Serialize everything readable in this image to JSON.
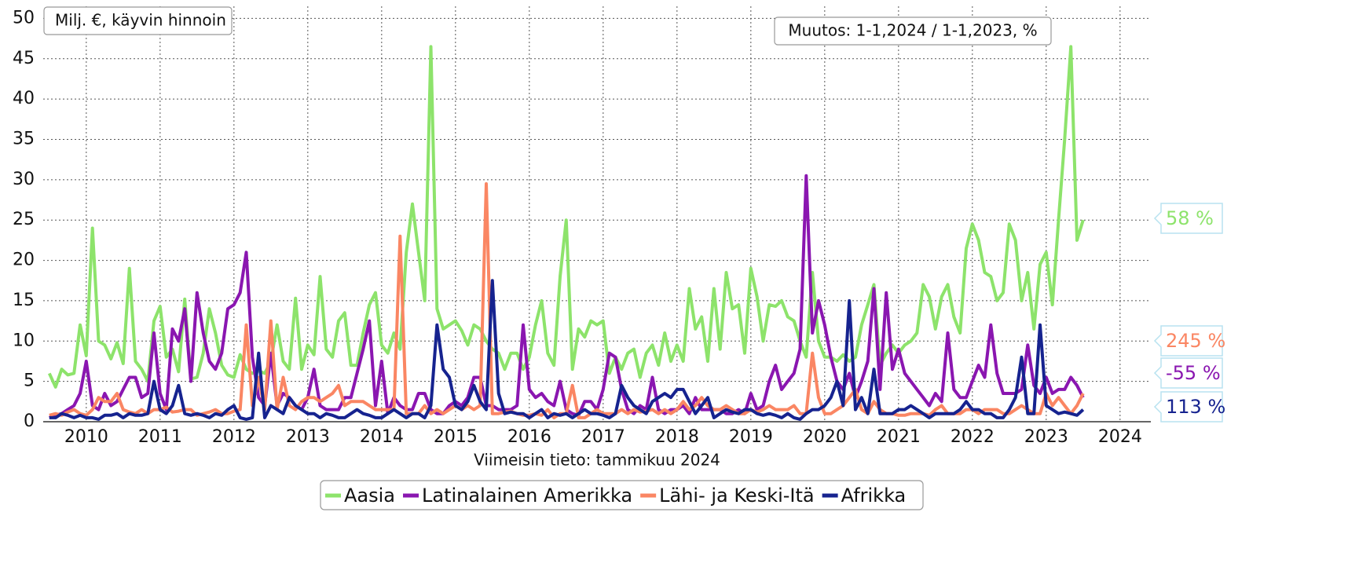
{
  "chart_data": {
    "type": "line",
    "annotations": {
      "units": "Milj. €, käyvin hinnoin",
      "change": "Muutos: 1-1,2024 / 1-1,2023, %",
      "footer": "Viimeisin tieto: tammikuu 2024"
    },
    "x": [
      "2010-01",
      "2010-02",
      "2010-03",
      "2010-04",
      "2010-05",
      "2010-06",
      "2010-07",
      "2010-08",
      "2010-09",
      "2010-10",
      "2010-11",
      "2010-12",
      "2011-01",
      "2011-02",
      "2011-03",
      "2011-04",
      "2011-05",
      "2011-06",
      "2011-07",
      "2011-08",
      "2011-09",
      "2011-10",
      "2011-11",
      "2011-12",
      "2012-01",
      "2012-02",
      "2012-03",
      "2012-04",
      "2012-05",
      "2012-06",
      "2012-07",
      "2012-08",
      "2012-09",
      "2012-10",
      "2012-11",
      "2012-12",
      "2013-01",
      "2013-02",
      "2013-03",
      "2013-04",
      "2013-05",
      "2013-06",
      "2013-07",
      "2013-08",
      "2013-09",
      "2013-10",
      "2013-11",
      "2013-12",
      "2014-01",
      "2014-02",
      "2014-03",
      "2014-04",
      "2014-05",
      "2014-06",
      "2014-07",
      "2014-08",
      "2014-09",
      "2014-10",
      "2014-11",
      "2014-12",
      "2015-01",
      "2015-02",
      "2015-03",
      "2015-04",
      "2015-05",
      "2015-06",
      "2015-07",
      "2015-08",
      "2015-09",
      "2015-10",
      "2015-11",
      "2015-12",
      "2016-01",
      "2016-02",
      "2016-03",
      "2016-04",
      "2016-05",
      "2016-06",
      "2016-07",
      "2016-08",
      "2016-09",
      "2016-10",
      "2016-11",
      "2016-12",
      "2017-01",
      "2017-02",
      "2017-03",
      "2017-04",
      "2017-05",
      "2017-06",
      "2017-07",
      "2017-08",
      "2017-09",
      "2017-10",
      "2017-11",
      "2017-12",
      "2018-01",
      "2018-02",
      "2018-03",
      "2018-04",
      "2018-05",
      "2018-06",
      "2018-07",
      "2018-08",
      "2018-09",
      "2018-10",
      "2018-11",
      "2018-12",
      "2019-01",
      "2019-02",
      "2019-03",
      "2019-04",
      "2019-05",
      "2019-06",
      "2019-07",
      "2019-08",
      "2019-09",
      "2019-10",
      "2019-11",
      "2019-12",
      "2020-01",
      "2020-02",
      "2020-03",
      "2020-04",
      "2020-05",
      "2020-06",
      "2020-07",
      "2020-08",
      "2020-09",
      "2020-10",
      "2020-11",
      "2020-12",
      "2021-01",
      "2021-02",
      "2021-03",
      "2021-04",
      "2021-05",
      "2021-06",
      "2021-07",
      "2021-08",
      "2021-09",
      "2021-10",
      "2021-11",
      "2021-12",
      "2022-01",
      "2022-02",
      "2022-03",
      "2022-04",
      "2022-05",
      "2022-06",
      "2022-07",
      "2022-08",
      "2022-09",
      "2022-10",
      "2022-11",
      "2022-12",
      "2023-01",
      "2023-02",
      "2023-03",
      "2023-04",
      "2023-05",
      "2023-06",
      "2023-07",
      "2023-08",
      "2023-09",
      "2023-10",
      "2023-11",
      "2023-12",
      "2024-01"
    ],
    "series": [
      {
        "name": "Aasia",
        "color": "#8de36b",
        "change_label": "58 %",
        "values": [
          6,
          4.3,
          6.5,
          5.8,
          6,
          12,
          8.2,
          24,
          10,
          9.5,
          7.8,
          9.8,
          7.2,
          19,
          7.5,
          6.5,
          5,
          12.5,
          14.3,
          8,
          9,
          6.2,
          15.2,
          5.3,
          5.5,
          8.5,
          14,
          11,
          7,
          5.8,
          5.5,
          8.3,
          6.5,
          6,
          6.3,
          6,
          7.5,
          12,
          7.5,
          6.5,
          15.3,
          6.5,
          9.5,
          8.3,
          18,
          9,
          8,
          12.5,
          13.5,
          7,
          7,
          11,
          14.5,
          16,
          9.5,
          8.5,
          11,
          9,
          21,
          27,
          21,
          15,
          46.5,
          14,
          11.5,
          12,
          12.5,
          11.3,
          9.5,
          12,
          11.5,
          10,
          9,
          8.5,
          6.5,
          8.5,
          8.5,
          6.5,
          8,
          12,
          15,
          8.5,
          7,
          18,
          25,
          6.5,
          11.5,
          10.5,
          12.5,
          12,
          12.5,
          6,
          8,
          6.5,
          8.5,
          9,
          5.5,
          8.5,
          9.5,
          7,
          11,
          7.5,
          9.5,
          7.5,
          16.5,
          11.5,
          13,
          7.5,
          16.5,
          9,
          18.5,
          14,
          14.5,
          8.5,
          19,
          15.5,
          10,
          14.5,
          14.3,
          15,
          13,
          12.5,
          10,
          8,
          18.5,
          10,
          8,
          8,
          7.5,
          8.3,
          7.5,
          8,
          12,
          14.5,
          17,
          7,
          8.5,
          9.5,
          8.5,
          9.5,
          10,
          11,
          17,
          15.5,
          11.5,
          15.5,
          17,
          13,
          11,
          21.5,
          24.5,
          22.5,
          18.5,
          18,
          15,
          16,
          24.5,
          22.5,
          15,
          18.5,
          11.5,
          19.5,
          21,
          14.5,
          25,
          35,
          46.5,
          22.5,
          25
        ]
      },
      {
        "name": "Latinalainen Amerikka",
        "color": "#8a16b0",
        "change_label": "-55 %",
        "values": [
          0.5,
          0.8,
          1,
          1.5,
          2,
          3.5,
          7.5,
          2,
          1.5,
          3.5,
          2,
          2.5,
          4,
          5.5,
          5.5,
          3,
          3.5,
          11,
          3.5,
          1.5,
          11.5,
          10,
          14,
          5,
          16,
          11,
          7.5,
          6.5,
          8.5,
          14,
          14.5,
          16,
          21,
          8,
          3,
          2,
          8.5,
          2,
          3.5,
          3,
          2,
          1.5,
          3,
          6.5,
          2,
          1.5,
          1.5,
          1.5,
          3,
          3,
          6,
          9,
          12.5,
          2,
          7.5,
          1,
          3,
          2,
          1.5,
          1.5,
          3.5,
          3.5,
          1.5,
          1,
          1,
          2,
          2.5,
          2,
          3,
          5.5,
          5.5,
          2,
          2,
          1.5,
          1.5,
          1.5,
          2,
          12,
          4,
          3,
          3.5,
          2.5,
          2,
          5,
          1.5,
          1,
          0.8,
          2.5,
          2.5,
          1.5,
          4,
          8.5,
          8,
          4,
          1.5,
          1,
          2,
          1.5,
          5.5,
          1.5,
          1,
          1.5,
          1.5,
          2,
          1,
          3,
          1.5,
          1.5,
          1.5,
          1.5,
          1,
          1,
          1.5,
          1,
          3.5,
          1.5,
          2,
          5,
          7,
          4,
          5,
          6,
          9,
          30.5,
          11,
          15,
          12,
          8,
          5,
          4,
          6,
          3,
          5,
          7.5,
          16.5,
          4,
          16,
          6.5,
          9,
          6,
          5,
          4,
          3,
          2,
          3.5,
          2.5,
          11,
          4,
          3,
          3,
          5,
          7,
          5.5,
          12,
          6,
          3.5,
          3.5,
          3.5,
          4,
          9.5,
          4.5,
          3.5,
          5.5,
          3.5,
          4,
          4,
          5.5,
          4.5,
          3
        ]
      },
      {
        "name": "Lähi- ja Keski-Itä",
        "color": "#fa8663",
        "change_label": "245 %",
        "values": [
          0.8,
          1,
          0.8,
          1.2,
          1.5,
          1,
          0.8,
          1.5,
          3,
          2.5,
          2.5,
          3.5,
          1.5,
          1.2,
          1,
          1.5,
          1,
          1.5,
          1.5,
          1.8,
          1.2,
          1.3,
          1.5,
          1.5,
          0.8,
          1,
          1.2,
          1.5,
          1,
          1,
          1.3,
          1.5,
          12,
          2,
          5.5,
          1.5,
          12.5,
          1.5,
          5.5,
          2,
          1.5,
          2.5,
          3,
          3,
          2.5,
          3,
          3.5,
          4.5,
          2,
          2.5,
          2.5,
          2.5,
          2,
          1.5,
          1.5,
          1.5,
          1.5,
          23,
          1,
          1,
          1,
          2,
          1,
          1.5,
          1,
          1.5,
          2,
          1.5,
          2,
          1.5,
          2,
          29.5,
          1,
          1,
          1.2,
          1.3,
          1,
          0.8,
          0.8,
          1,
          0.8,
          1.5,
          0.5,
          1,
          1,
          4.5,
          0.5,
          0.5,
          1,
          1.5,
          1,
          1,
          1,
          1.5,
          1,
          1.5,
          1.2,
          1.3,
          1.5,
          1,
          1.5,
          1,
          1.5,
          2.5,
          1.5,
          2,
          3,
          2,
          1.5,
          1.5,
          2,
          1.5,
          1,
          1,
          1.5,
          1.2,
          1.5,
          2,
          1.5,
          1.5,
          1.5,
          2,
          1,
          1,
          8.5,
          3,
          1,
          1,
          1.5,
          2,
          3,
          4,
          1.5,
          1,
          2.5,
          1.5,
          1,
          1,
          0.8,
          0.8,
          1,
          1,
          1,
          0.8,
          1.5,
          2,
          1,
          1,
          1,
          1.5,
          1.5,
          1,
          1.5,
          1.5,
          1.5,
          1,
          1,
          1.5,
          2,
          1.5,
          1,
          1,
          3.5,
          2,
          3,
          2,
          1,
          2,
          3.5
        ]
      },
      {
        "name": "Afrikka",
        "color": "#16238f",
        "change_label": "113 %",
        "values": [
          0.5,
          0.5,
          1,
          0.8,
          0.5,
          0.8,
          0.5,
          0.5,
          0.3,
          0.8,
          0.8,
          1,
          0.5,
          1,
          0.8,
          0.8,
          1,
          5,
          1.5,
          1,
          2,
          4.5,
          1,
          0.8,
          1,
          0.8,
          0.5,
          1,
          0.8,
          1.5,
          2,
          0.5,
          0.3,
          0.5,
          8.5,
          0.5,
          2,
          1.5,
          1,
          3,
          2,
          1.5,
          1,
          1,
          0.5,
          1,
          0.8,
          0.5,
          0.5,
          1,
          1.5,
          1,
          0.8,
          0.5,
          0.5,
          1,
          1.5,
          1,
          0.5,
          1,
          1,
          0.5,
          2,
          12,
          6.5,
          5.5,
          2,
          1.5,
          2.5,
          4.5,
          2.5,
          1.5,
          17.5,
          3.5,
          1,
          1.2,
          1,
          1,
          0.5,
          1,
          1.5,
          0.5,
          1,
          0.8,
          1,
          0.5,
          1,
          1.5,
          1,
          1,
          0.8,
          0.5,
          1,
          4.5,
          3,
          2,
          1.5,
          1,
          2.5,
          3,
          3.5,
          3,
          4,
          4,
          2.5,
          1,
          2,
          3,
          0.5,
          1,
          1.5,
          1.2,
          1,
          1.5,
          1.5,
          1,
          0.8,
          1,
          0.8,
          0.5,
          1,
          0.5,
          0.3,
          1,
          1.5,
          1.5,
          2,
          3,
          5,
          2,
          15,
          1.5,
          3,
          1,
          6.5,
          1,
          1,
          1,
          1.5,
          1.5,
          2,
          1.5,
          1,
          0.5,
          1,
          1,
          1,
          1,
          1.5,
          2.5,
          1.5,
          1.5,
          1,
          1,
          0.5,
          0.5,
          1.5,
          3,
          8,
          1,
          1,
          12,
          2,
          1.5,
          1,
          1.2,
          1,
          0.8,
          1.5
        ]
      }
    ],
    "xlim": [
      "2009-12",
      "2024-12"
    ],
    "xticks": [
      {
        "value": "2010-07",
        "label": "2010"
      },
      {
        "value": "2011-07",
        "label": "2011"
      },
      {
        "value": "2012-07",
        "label": "2012"
      },
      {
        "value": "2013-07",
        "label": "2013"
      },
      {
        "value": "2014-07",
        "label": "2014"
      },
      {
        "value": "2015-07",
        "label": "2015"
      },
      {
        "value": "2016-07",
        "label": "2016"
      },
      {
        "value": "2017-07",
        "label": "2017"
      },
      {
        "value": "2018-07",
        "label": "2018"
      },
      {
        "value": "2019-07",
        "label": "2019"
      },
      {
        "value": "2020-07",
        "label": "2020"
      },
      {
        "value": "2021-07",
        "label": "2021"
      },
      {
        "value": "2022-07",
        "label": "2022"
      },
      {
        "value": "2023-07",
        "label": "2023"
      },
      {
        "value": "2024-07",
        "label": "2024"
      }
    ],
    "ylim": [
      0,
      51.5
    ],
    "yticks": [
      0,
      5,
      10,
      15,
      20,
      25,
      30,
      35,
      40,
      45,
      50
    ],
    "grid": true,
    "legend": "bottom"
  }
}
